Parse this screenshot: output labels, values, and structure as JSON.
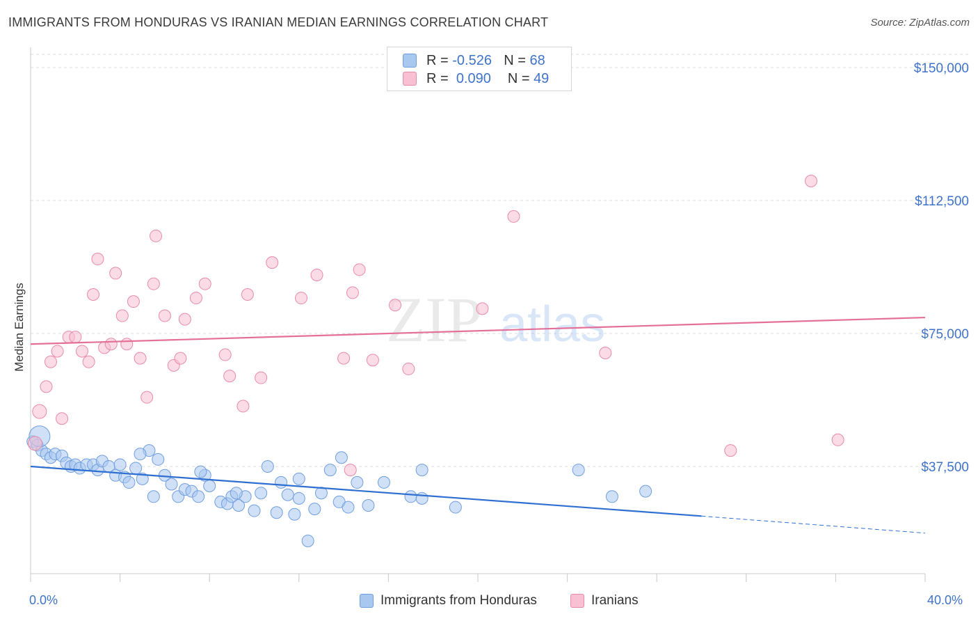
{
  "header": {
    "title": "IMMIGRANTS FROM HONDURAS VS IRANIAN MEDIAN EARNINGS CORRELATION CHART",
    "source": "Source: ZipAtlas.com"
  },
  "legend": {
    "rows": [
      {
        "r_label": "R =",
        "r_value": "-0.526",
        "n_label": "N =",
        "n_value": "68",
        "color": "#a9c8f0",
        "border": "#6f9ee0"
      },
      {
        "r_label": "R =",
        "r_value": "0.090",
        "n_label": "N =",
        "n_value": "49",
        "color": "#f8c0d2",
        "border": "#e88aa8"
      }
    ],
    "series": [
      {
        "label": "Immigrants from Honduras",
        "color": "#a9c8f0",
        "border": "#6f9ee0"
      },
      {
        "label": "Iranians",
        "color": "#f8c0d2",
        "border": "#e88aa8"
      }
    ]
  },
  "chart_data": {
    "type": "scatter",
    "title": "IMMIGRANTS FROM HONDURAS VS IRANIAN MEDIAN EARNINGS CORRELATION CHART",
    "xlabel": "",
    "ylabel": "Median Earnings",
    "xlim": [
      0,
      40
    ],
    "ylim": [
      0,
      150000
    ],
    "x_tick_labels": [
      "0.0%",
      "40.0%"
    ],
    "y_ticks": [
      37500,
      75000,
      112500,
      150000
    ],
    "y_tick_labels": [
      "$37,500",
      "$75,000",
      "$112,500",
      "$150,000"
    ],
    "grid": true,
    "legend_position": "top-center",
    "watermark": "ZIPatlas",
    "series": [
      {
        "name": "Immigrants from Honduras",
        "color": "#6f9ee0",
        "fill": "#a9c8f0",
        "trend": {
          "x": [
            0,
            30
          ],
          "y": [
            37500,
            23500
          ],
          "dashed_to": [
            40,
            18700
          ]
        },
        "points": [
          [
            0.1,
            44500
          ],
          [
            0.3,
            43500
          ],
          [
            0.5,
            42000
          ],
          [
            0.7,
            41000
          ],
          [
            0.9,
            40000
          ],
          [
            1.1,
            41000
          ],
          [
            1.4,
            40500
          ],
          [
            1.6,
            38500
          ],
          [
            1.8,
            37500
          ],
          [
            2.0,
            38000
          ],
          [
            2.2,
            37000
          ],
          [
            2.5,
            38000
          ],
          [
            2.8,
            38000
          ],
          [
            3.0,
            36500
          ],
          [
            3.2,
            39000
          ],
          [
            3.5,
            37500
          ],
          [
            3.8,
            35000
          ],
          [
            4.0,
            38000
          ],
          [
            4.2,
            34500
          ],
          [
            4.4,
            33000
          ],
          [
            4.7,
            37000
          ],
          [
            5.0,
            34000
          ],
          [
            5.3,
            42000
          ],
          [
            5.5,
            29000
          ],
          [
            5.7,
            39500
          ],
          [
            6.0,
            35000
          ],
          [
            6.3,
            32500
          ],
          [
            6.6,
            29000
          ],
          [
            6.9,
            31000
          ],
          [
            7.2,
            30500
          ],
          [
            7.5,
            29000
          ],
          [
            7.8,
            35000
          ],
          [
            8.0,
            32000
          ],
          [
            8.5,
            27500
          ],
          [
            8.8,
            27000
          ],
          [
            9.0,
            29000
          ],
          [
            9.3,
            26500
          ],
          [
            9.6,
            29000
          ],
          [
            10.0,
            25000
          ],
          [
            10.3,
            30000
          ],
          [
            10.6,
            37500
          ],
          [
            11.0,
            24500
          ],
          [
            11.2,
            33000
          ],
          [
            11.5,
            29500
          ],
          [
            11.8,
            24000
          ],
          [
            12.0,
            28500
          ],
          [
            12.4,
            16500
          ],
          [
            12.7,
            25500
          ],
          [
            13.0,
            30000
          ],
          [
            13.4,
            36500
          ],
          [
            13.8,
            27500
          ],
          [
            14.2,
            26000
          ],
          [
            14.6,
            33000
          ],
          [
            15.1,
            26500
          ],
          [
            15.8,
            33000
          ],
          [
            17.0,
            29000
          ],
          [
            17.5,
            36500
          ],
          [
            19.0,
            26000
          ],
          [
            24.5,
            36500
          ],
          [
            26.0,
            29000
          ],
          [
            27.5,
            30500
          ],
          [
            4.9,
            41000
          ],
          [
            7.6,
            36000
          ],
          [
            9.2,
            30000
          ],
          [
            12.0,
            34000
          ],
          [
            13.9,
            40000
          ],
          [
            17.5,
            28500
          ],
          [
            0.4,
            46000
          ]
        ]
      },
      {
        "name": "Iranians",
        "color": "#e88aa8",
        "fill": "#f8c0d2",
        "trend": {
          "x": [
            0,
            40
          ],
          "y": [
            72000,
            79500
          ]
        },
        "points": [
          [
            0.4,
            53000
          ],
          [
            0.7,
            60000
          ],
          [
            0.9,
            67000
          ],
          [
            1.2,
            70000
          ],
          [
            1.4,
            51000
          ],
          [
            1.7,
            74000
          ],
          [
            2.0,
            74000
          ],
          [
            2.3,
            70000
          ],
          [
            2.6,
            67000
          ],
          [
            2.8,
            86000
          ],
          [
            3.0,
            96000
          ],
          [
            3.3,
            71000
          ],
          [
            3.6,
            72000
          ],
          [
            3.8,
            92000
          ],
          [
            4.1,
            80000
          ],
          [
            4.3,
            72000
          ],
          [
            4.6,
            84000
          ],
          [
            4.9,
            68000
          ],
          [
            5.2,
            57000
          ],
          [
            5.5,
            89000
          ],
          [
            5.6,
            102500
          ],
          [
            6.0,
            80000
          ],
          [
            6.4,
            66000
          ],
          [
            6.7,
            68000
          ],
          [
            6.9,
            79000
          ],
          [
            7.4,
            85000
          ],
          [
            7.8,
            89000
          ],
          [
            8.7,
            69000
          ],
          [
            8.9,
            63000
          ],
          [
            9.5,
            54500
          ],
          [
            9.7,
            86000
          ],
          [
            10.3,
            62500
          ],
          [
            10.8,
            95000
          ],
          [
            12.1,
            85000
          ],
          [
            12.8,
            91500
          ],
          [
            14.0,
            68000
          ],
          [
            14.4,
            86500
          ],
          [
            14.7,
            93000
          ],
          [
            15.3,
            67500
          ],
          [
            16.3,
            83000
          ],
          [
            16.9,
            65000
          ],
          [
            20.2,
            82000
          ],
          [
            21.6,
            108000
          ],
          [
            25.7,
            69500
          ],
          [
            31.3,
            42000
          ],
          [
            34.9,
            118000
          ],
          [
            36.1,
            45000
          ],
          [
            14.3,
            36500
          ],
          [
            0.2,
            44000
          ]
        ]
      }
    ]
  },
  "colors": {
    "axis_text": "#3f73c9",
    "grid": "#dcdcdc",
    "blue_line": "#2f6fd1",
    "pink_line": "#e4709a"
  }
}
